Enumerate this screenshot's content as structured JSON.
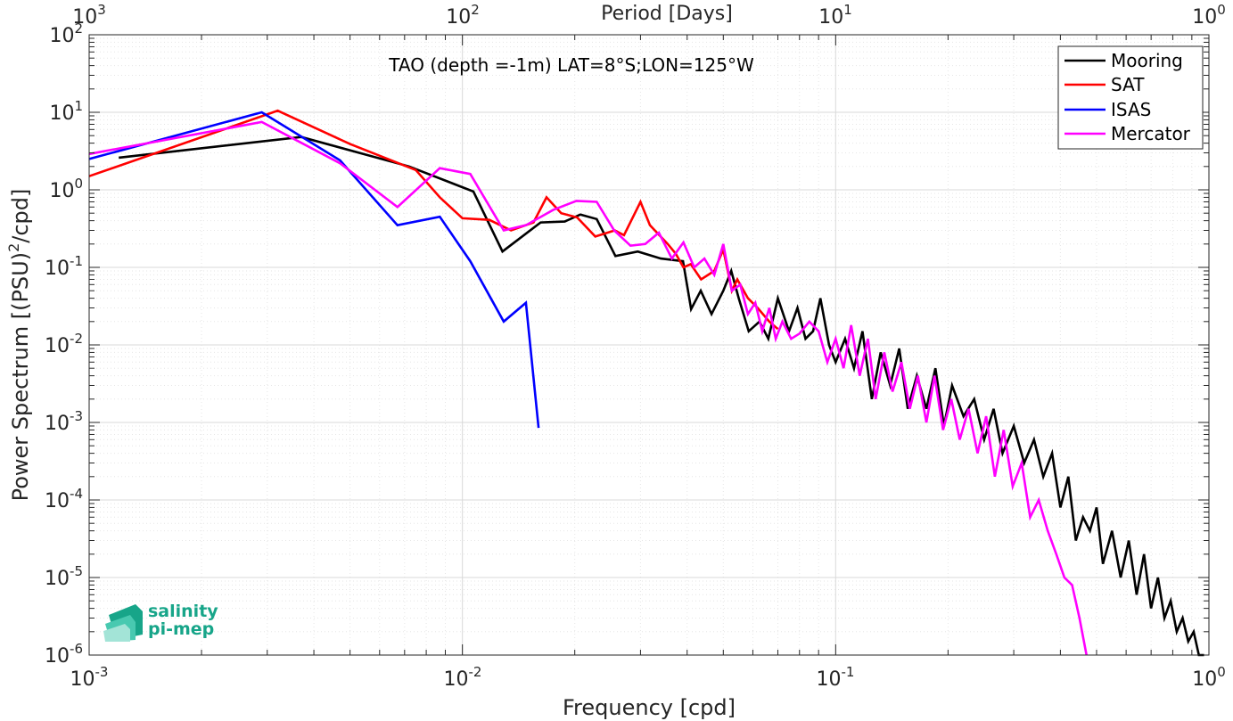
{
  "chart_data": {
    "type": "line",
    "title": "TAO (depth =-1m) LAT=8°S;LON=125°W",
    "xlabel": "Frequency [cpd]",
    "ylabel_main": "Power Spectrum [(PSU)",
    "ylabel_sup": "2",
    "ylabel_tail": "/cpd]",
    "top_xlabel": "Period [Days]",
    "xscale": "log",
    "yscale": "log",
    "xlim": [
      0.001,
      1
    ],
    "ylim": [
      1e-06,
      100
    ],
    "grid": true,
    "legend_position": "top-right",
    "x_ticks": [
      {
        "base": "10",
        "exp": "-3"
      },
      {
        "base": "10",
        "exp": "-2"
      },
      {
        "base": "10",
        "exp": "-1"
      },
      {
        "base": "10",
        "exp": "0"
      }
    ],
    "y_ticks": [
      {
        "base": "10",
        "exp": "-6"
      },
      {
        "base": "10",
        "exp": "-5"
      },
      {
        "base": "10",
        "exp": "-4"
      },
      {
        "base": "10",
        "exp": "-3"
      },
      {
        "base": "10",
        "exp": "-2"
      },
      {
        "base": "10",
        "exp": "-1"
      },
      {
        "base": "10",
        "exp": "0"
      },
      {
        "base": "10",
        "exp": "1"
      },
      {
        "base": "10",
        "exp": "2"
      }
    ],
    "top_ticks": [
      {
        "base": "10",
        "exp": "3"
      },
      {
        "base": "10",
        "exp": "2"
      },
      {
        "base": "10",
        "exp": "1"
      },
      {
        "base": "10",
        "exp": "0"
      }
    ],
    "series": [
      {
        "name": "Mooring",
        "color": "#000000",
        "x": [
          0.0012,
          0.0037,
          0.0072,
          0.0107,
          0.0128,
          0.0162,
          0.0188,
          0.0207,
          0.0229,
          0.0257,
          0.0295,
          0.034,
          0.039,
          0.041,
          0.0435,
          0.0465,
          0.05,
          0.0525,
          0.055,
          0.0585,
          0.0625,
          0.066,
          0.07,
          0.075,
          0.079,
          0.083,
          0.087,
          0.091,
          0.096,
          0.1,
          0.106,
          0.112,
          0.118,
          0.125,
          0.132,
          0.14,
          0.148,
          0.156,
          0.165,
          0.175,
          0.185,
          0.195,
          0.205,
          0.22,
          0.235,
          0.25,
          0.265,
          0.28,
          0.3,
          0.32,
          0.34,
          0.36,
          0.38,
          0.4,
          0.42,
          0.44,
          0.46,
          0.48,
          0.5,
          0.52,
          0.55,
          0.58,
          0.61,
          0.64,
          0.67,
          0.7,
          0.73,
          0.76,
          0.79,
          0.82,
          0.85,
          0.88,
          0.91,
          0.94,
          0.97
        ],
        "y": [
          2.6,
          4.8,
          2.0,
          0.95,
          0.16,
          0.38,
          0.39,
          0.48,
          0.42,
          0.14,
          0.16,
          0.13,
          0.12,
          0.029,
          0.05,
          0.025,
          0.05,
          0.09,
          0.04,
          0.015,
          0.02,
          0.012,
          0.04,
          0.015,
          0.03,
          0.012,
          0.015,
          0.04,
          0.01,
          0.006,
          0.012,
          0.005,
          0.015,
          0.002,
          0.008,
          0.003,
          0.009,
          0.0015,
          0.004,
          0.0015,
          0.005,
          0.0009,
          0.003,
          0.0012,
          0.002,
          0.0006,
          0.0015,
          0.0004,
          0.0009,
          0.0003,
          0.0006,
          0.0002,
          0.0004,
          8e-05,
          0.0002,
          3e-05,
          6e-05,
          4e-05,
          8e-05,
          1.5e-05,
          4e-05,
          1e-05,
          3e-05,
          6e-06,
          2e-05,
          4e-06,
          1e-05,
          3e-06,
          5e-06,
          2e-06,
          3e-06,
          1.5e-06,
          2e-06,
          1e-06,
          1e-06
        ]
      },
      {
        "name": "SAT",
        "color": "#ff0000",
        "x": [
          0.001,
          0.0032,
          0.005,
          0.0075,
          0.0087,
          0.01,
          0.0118,
          0.0135,
          0.0155,
          0.0168,
          0.0184,
          0.0203,
          0.0227,
          0.0256,
          0.0271,
          0.03,
          0.0318,
          0.0355,
          0.0373,
          0.0391,
          0.0409,
          0.0436,
          0.0473,
          0.05,
          0.0527,
          0.0545,
          0.0582,
          0.0618,
          0.0664,
          0.07
        ],
        "y": [
          1.5,
          10.5,
          3.9,
          1.8,
          0.8,
          0.43,
          0.41,
          0.3,
          0.38,
          0.8,
          0.5,
          0.44,
          0.25,
          0.3,
          0.26,
          0.7,
          0.35,
          0.2,
          0.15,
          0.1,
          0.11,
          0.07,
          0.09,
          0.17,
          0.05,
          0.07,
          0.04,
          0.03,
          0.02,
          0.016
        ]
      },
      {
        "name": "ISAS",
        "color": "#0000ff",
        "x": [
          0.001,
          0.0029,
          0.0047,
          0.0067,
          0.0087,
          0.0105,
          0.0129,
          0.0148,
          0.016
        ],
        "y": [
          2.5,
          10.0,
          2.4,
          0.35,
          0.45,
          0.12,
          0.02,
          0.035,
          0.00085
        ]
      },
      {
        "name": "Mercator",
        "color": "#ff00ff",
        "x": [
          0.001,
          0.0029,
          0.0047,
          0.0067,
          0.0087,
          0.0105,
          0.0129,
          0.0148,
          0.0175,
          0.0202,
          0.0229,
          0.0255,
          0.0282,
          0.0309,
          0.0336,
          0.0364,
          0.0391,
          0.0418,
          0.0445,
          0.0473,
          0.05,
          0.0527,
          0.0555,
          0.0582,
          0.0609,
          0.0636,
          0.0664,
          0.0691,
          0.072,
          0.076,
          0.08,
          0.085,
          0.09,
          0.095,
          0.1,
          0.105,
          0.11,
          0.116,
          0.122,
          0.128,
          0.135,
          0.142,
          0.15,
          0.158,
          0.166,
          0.175,
          0.184,
          0.194,
          0.204,
          0.215,
          0.227,
          0.24,
          0.253,
          0.267,
          0.282,
          0.298,
          0.315,
          0.332,
          0.35,
          0.37,
          0.39,
          0.41,
          0.43,
          0.45,
          0.47
        ],
        "y": [
          2.9,
          7.5,
          2.2,
          0.6,
          1.9,
          1.6,
          0.3,
          0.35,
          0.55,
          0.72,
          0.7,
          0.3,
          0.19,
          0.2,
          0.28,
          0.13,
          0.21,
          0.1,
          0.13,
          0.08,
          0.2,
          0.05,
          0.06,
          0.025,
          0.035,
          0.015,
          0.03,
          0.012,
          0.02,
          0.012,
          0.014,
          0.02,
          0.015,
          0.006,
          0.012,
          0.005,
          0.018,
          0.004,
          0.012,
          0.002,
          0.008,
          0.0025,
          0.006,
          0.0015,
          0.004,
          0.001,
          0.004,
          0.0008,
          0.002,
          0.0006,
          0.0015,
          0.0004,
          0.0012,
          0.0002,
          0.0008,
          0.00015,
          0.0003,
          6e-05,
          0.0001,
          4e-05,
          2e-05,
          1e-05,
          8e-06,
          3e-06,
          1e-06
        ]
      }
    ]
  },
  "logo": {
    "line1": "salinity",
    "line2": "pi-mep"
  }
}
